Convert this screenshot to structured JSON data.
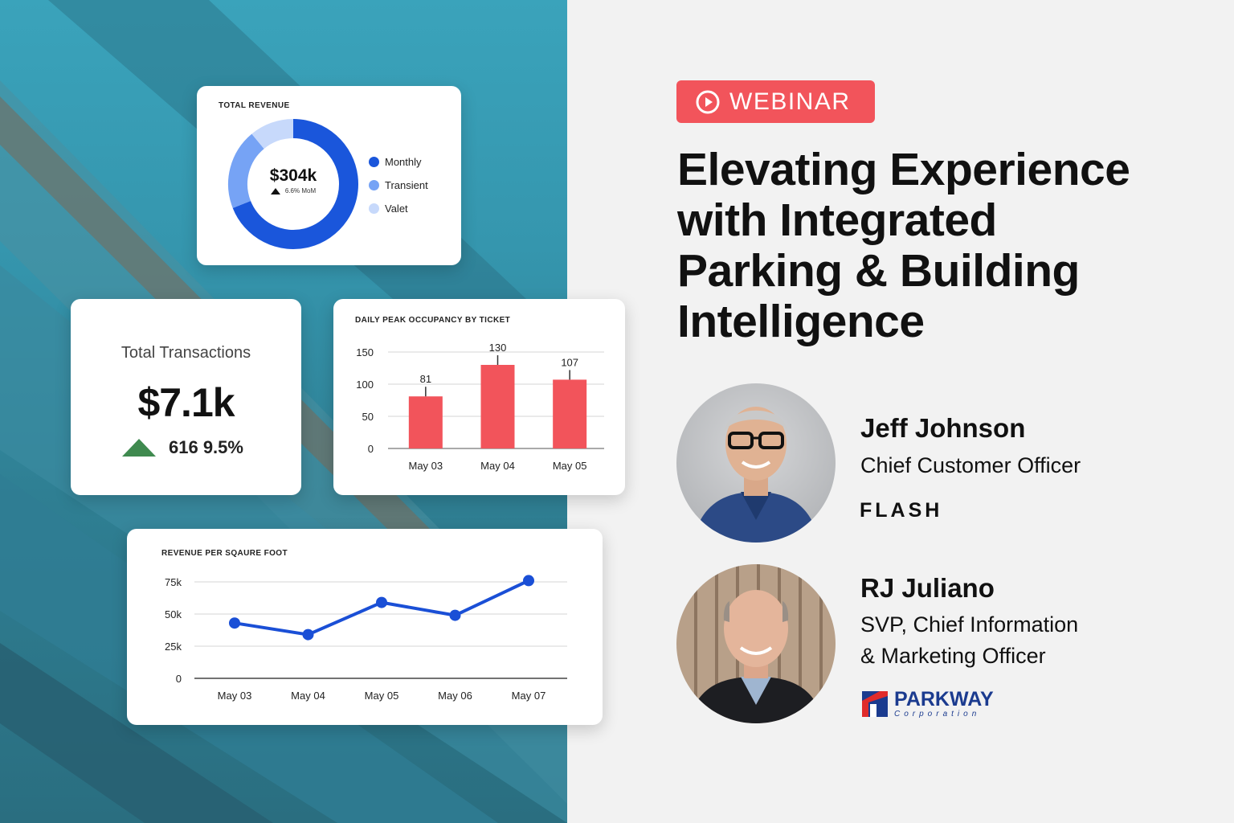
{
  "badge": {
    "label": "WEBINAR",
    "icon": "play-circle-icon",
    "color": "#f2545b"
  },
  "headline": {
    "line1": "Elevating Experience",
    "line2": "with Integrated",
    "line3": "Parking & Building",
    "line4": "Intelligence"
  },
  "speakers": [
    {
      "name": "Jeff Johnson",
      "role_line1": "Chief Customer Officer",
      "role_line2": "",
      "company": "FLASH"
    },
    {
      "name": "RJ Juliano",
      "role_line1": "SVP, Chief Information",
      "role_line2": "& Marketing Officer",
      "company": "PARKWAY",
      "company_sub": "Corporation"
    }
  ],
  "total_revenue": {
    "title": "TOTAL REVENUE",
    "value": "$304k",
    "change": "6.6% MoM",
    "chart_data": {
      "type": "pie",
      "title": "TOTAL REVENUE",
      "labels": [
        "Monthly",
        "Transient",
        "Valet"
      ],
      "values": [
        69,
        20,
        11
      ],
      "colors": [
        "#1a56db",
        "#76a3f5",
        "#c7d9fb"
      ]
    }
  },
  "total_transactions": {
    "title": "Total Transactions",
    "value": "$7.1k",
    "change": "616 9.5%",
    "trend_color": "#3f8a4f"
  },
  "occupancy": {
    "chart_data": {
      "type": "bar",
      "title": "DAILY PEAK OCCUPANCY BY TICKET",
      "categories": [
        "May 03",
        "May 04",
        "May 05"
      ],
      "values": [
        81,
        130,
        107
      ],
      "ylim": [
        0,
        150
      ],
      "yticks": [
        0,
        50,
        100,
        150
      ],
      "color": "#f2545b",
      "grid": true
    }
  },
  "revenue_sqft": {
    "chart_data": {
      "type": "line",
      "title": "REVENUE PER SQAURE FOOT",
      "categories": [
        "May 03",
        "May 04",
        "May 05",
        "May 06",
        "May 07"
      ],
      "values": [
        43000,
        34000,
        59000,
        49000,
        76000
      ],
      "ylim": [
        0,
        75000
      ],
      "yticks": [
        0,
        25000,
        50000,
        75000
      ],
      "ytick_labels": [
        "0",
        "25k",
        "50k",
        "75k"
      ],
      "color": "#1a4fd6",
      "grid": true
    }
  }
}
